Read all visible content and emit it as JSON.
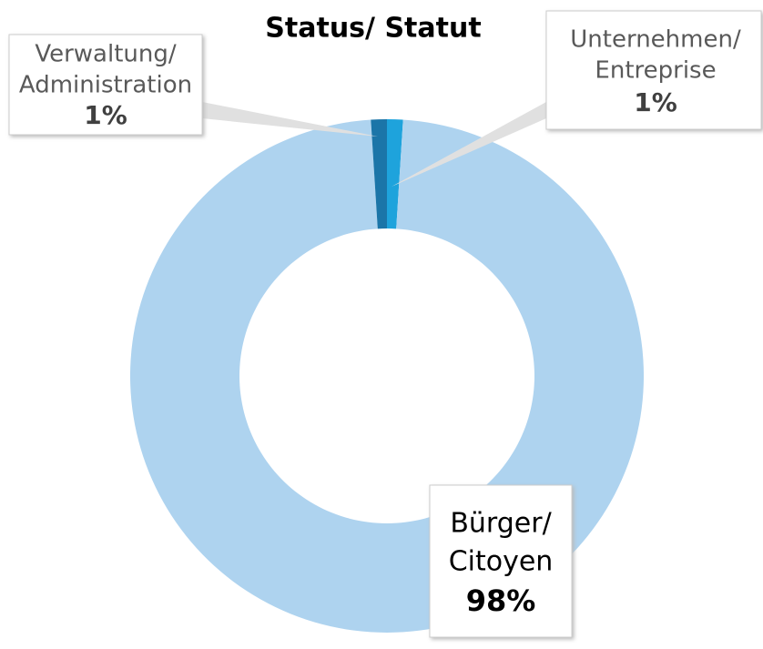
{
  "chart_data": {
    "type": "donut",
    "title": "Status/ Statut",
    "categories": [
      [
        "Unternehmen/",
        "Entreprise"
      ],
      [
        "Bürger/",
        "Citoyen"
      ],
      [
        "Verwaltung/",
        "Administration"
      ]
    ],
    "values": [
      1,
      98,
      1
    ],
    "value_labels": [
      "1%",
      "98%",
      "1%"
    ],
    "colors": [
      "#1ea3dc",
      "#aed3ef",
      "#1b75a8"
    ]
  }
}
